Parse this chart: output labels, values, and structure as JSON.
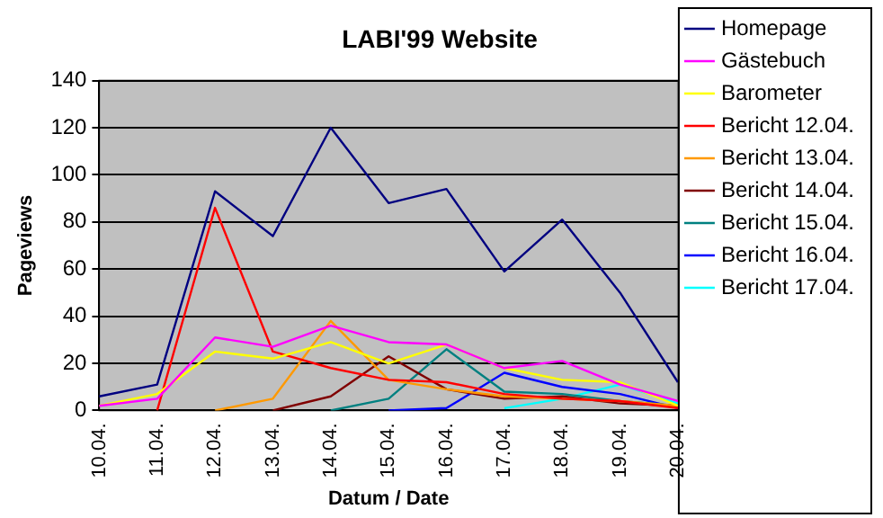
{
  "chart_data": {
    "type": "line",
    "title": "LABI'99 Website",
    "xlabel": "Datum / Date",
    "ylabel": "Pageviews",
    "categories": [
      "10.04.",
      "11.04.",
      "12.04.",
      "13.04.",
      "14.04.",
      "15.04.",
      "16.04.",
      "17.04.",
      "18.04.",
      "19.04.",
      "20.04."
    ],
    "series": [
      {
        "name": "Homepage",
        "color": "#000080",
        "values": [
          6,
          11,
          93,
          74,
          120,
          88,
          94,
          59,
          81,
          50,
          12
        ]
      },
      {
        "name": "Gästebuch",
        "color": "#ff00ff",
        "values": [
          2,
          5,
          31,
          27,
          36,
          29,
          28,
          18,
          21,
          11,
          4
        ]
      },
      {
        "name": "Barometer",
        "color": "#ffff00",
        "values": [
          2,
          7,
          25,
          22,
          29,
          20,
          28,
          18,
          13,
          12,
          2
        ]
      },
      {
        "name": "Bericht 12.04.",
        "color": "#ff0000",
        "values": [
          null,
          0,
          86,
          25,
          18,
          13,
          12,
          7,
          5,
          4,
          1
        ]
      },
      {
        "name": "Bericht 13.04.",
        "color": "#ff9900",
        "values": [
          null,
          null,
          0,
          5,
          38,
          13,
          9,
          6,
          5,
          4,
          2
        ]
      },
      {
        "name": "Bericht 14.04.",
        "color": "#800000",
        "values": [
          null,
          null,
          null,
          0,
          6,
          23,
          9,
          5,
          6,
          3,
          2
        ]
      },
      {
        "name": "Bericht 15.04.",
        "color": "#008080",
        "values": [
          null,
          null,
          null,
          null,
          0,
          5,
          26,
          8,
          7,
          4,
          2
        ]
      },
      {
        "name": "Bericht 16.04.",
        "color": "#0000ff",
        "values": [
          null,
          null,
          null,
          null,
          null,
          0,
          1,
          16,
          10,
          7,
          1
        ]
      },
      {
        "name": "Bericht 17.04.",
        "color": "#00ffff",
        "values": [
          null,
          null,
          null,
          null,
          null,
          null,
          null,
          1,
          5,
          11,
          3
        ]
      }
    ],
    "ylim": [
      0,
      140
    ],
    "yticks": [
      0,
      20,
      40,
      60,
      80,
      100,
      120,
      140
    ],
    "grid": "y",
    "legend": "right",
    "marker": "none",
    "line_style": "solid"
  }
}
